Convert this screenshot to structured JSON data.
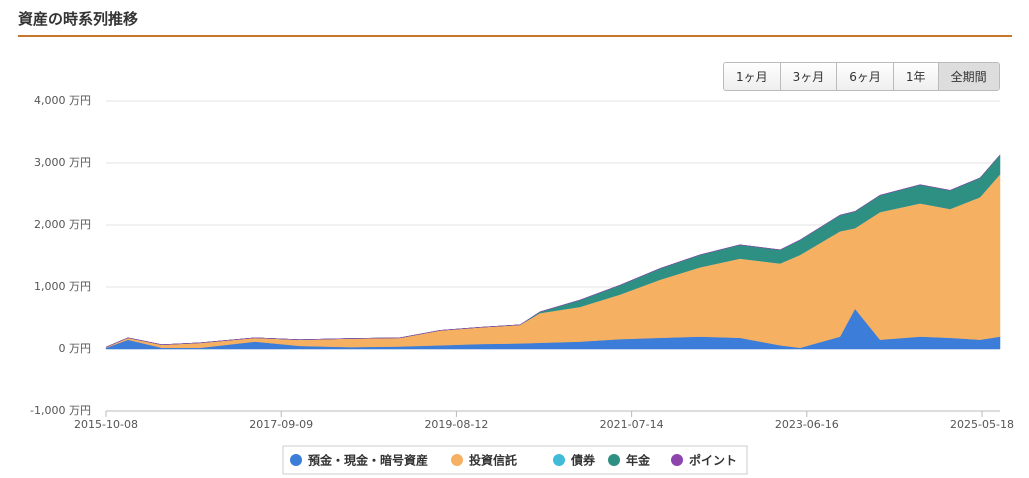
{
  "header": {
    "title": "資産の時系列推移"
  },
  "range_buttons": [
    "1ヶ月",
    "3ヶ月",
    "6ヶ月",
    "1年",
    "全期間"
  ],
  "chart_data": {
    "type": "stacked-area",
    "x": [
      "2015-10-08",
      "2016-01-04",
      "2016-05-19",
      "2016-10-19",
      "2017-05-27",
      "2017-11-23",
      "2018-06-12",
      "2018-12-29",
      "2019-06-07",
      "2019-11-15",
      "2020-04-23",
      "2020-07-12",
      "2020-12-19",
      "2021-05-29",
      "2021-11-05",
      "2022-04-14",
      "2022-09-21",
      "2023-03-01",
      "2023-05-20",
      "2023-10-27",
      "2023-12-26",
      "2024-04-04",
      "2024-09-12",
      "2025-01-10",
      "2025-05-10",
      "2025-07-29"
    ],
    "series": [
      {
        "name": "預金・現金・暗号資産",
        "color": "#3b7dd8",
        "values": [
          20,
          150,
          20,
          20,
          120,
          50,
          30,
          40,
          60,
          80,
          90,
          100,
          120,
          160,
          180,
          200,
          180,
          60,
          20,
          200,
          650,
          150,
          200,
          180,
          150,
          200
        ]
      },
      {
        "name": "投資信託",
        "color": "#f5b062",
        "values": [
          10,
          30,
          50,
          80,
          60,
          100,
          140,
          140,
          240,
          270,
          300,
          480,
          560,
          720,
          940,
          1120,
          1280,
          1320,
          1500,
          1700,
          1300,
          2060,
          2150,
          2080,
          2300,
          2620
        ]
      },
      {
        "name": "債券",
        "color": "#40bcd8",
        "values": [
          0,
          0,
          0,
          0,
          0,
          0,
          0,
          0,
          0,
          0,
          0,
          0,
          0,
          0,
          0,
          0,
          0,
          0,
          0,
          0,
          0,
          0,
          0,
          0,
          0,
          0
        ]
      },
      {
        "name": "年金",
        "color": "#2e8f83",
        "values": [
          0,
          0,
          0,
          0,
          0,
          0,
          0,
          0,
          0,
          0,
          0,
          20,
          110,
          150,
          180,
          200,
          220,
          220,
          240,
          260,
          270,
          270,
          300,
          300,
          310,
          310
        ]
      },
      {
        "name": "ポイント",
        "color": "#8e44ad",
        "values": [
          0,
          0,
          0,
          0,
          0,
          0,
          0,
          0,
          0,
          0,
          0,
          0,
          0,
          0,
          0,
          0,
          0,
          0,
          0,
          0,
          0,
          0,
          0,
          0,
          0,
          0
        ]
      }
    ],
    "xlim": [
      "2015-10-08",
      "2025-07-29"
    ],
    "xticks": [
      "2015-10-08",
      "2017-09-09",
      "2019-08-12",
      "2021-07-14",
      "2023-06-16",
      "2025-05-18"
    ],
    "ylim": [
      -1000,
      4000
    ],
    "yticks": [
      {
        "value": -1000,
        "label": "-1,000 万円"
      },
      {
        "value": 0,
        "label": "0 万円"
      },
      {
        "value": 1000,
        "label": "1,000 万円"
      },
      {
        "value": 2000,
        "label": "2,000 万円"
      },
      {
        "value": 3000,
        "label": "3,000 万円"
      },
      {
        "value": 4000,
        "label": "4,000 万円"
      }
    ],
    "grid": true,
    "legend": "bottom"
  }
}
